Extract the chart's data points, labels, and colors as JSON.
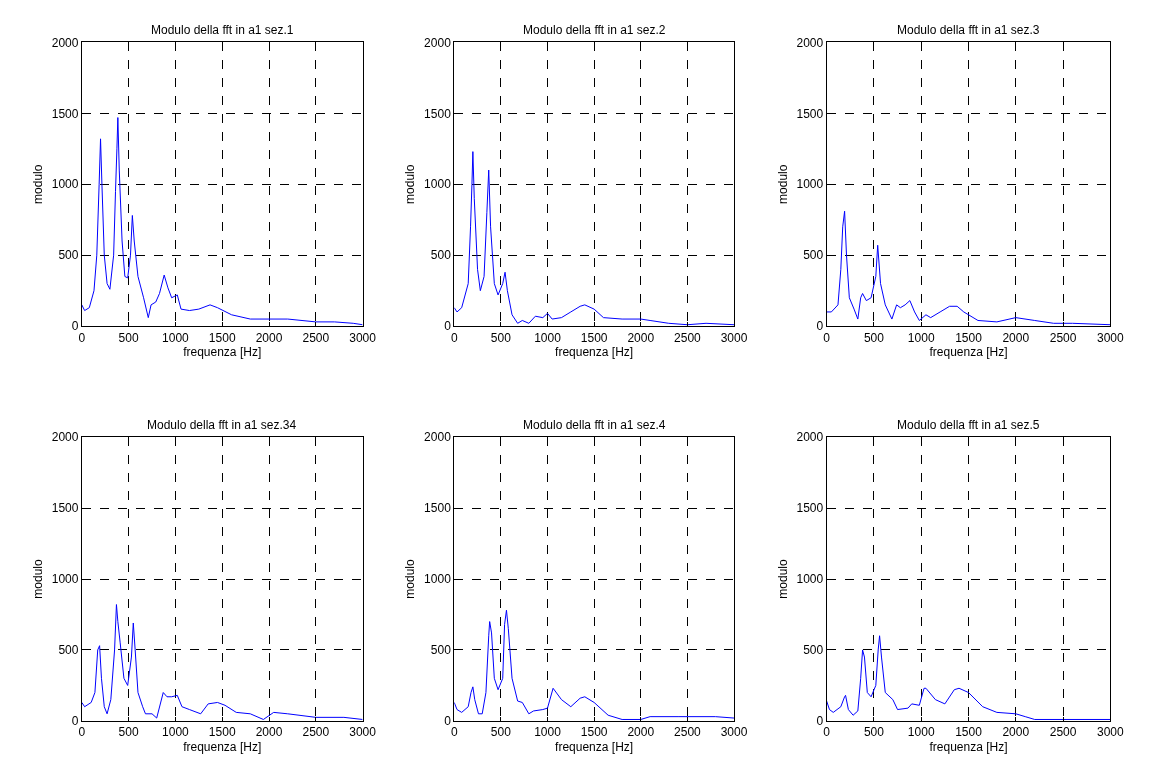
{
  "chart_data": [
    {
      "type": "line",
      "title": "Modulo della fft in a1 sez.1",
      "xlabel": "frequenza [Hz]",
      "ylabel": "modulo",
      "xlim": [
        0,
        3000
      ],
      "ylim": [
        0,
        2000
      ],
      "xticks": [
        0,
        500,
        1000,
        1500,
        2000,
        2500,
        3000
      ],
      "yticks": [
        0,
        500,
        1000,
        1500,
        2000
      ],
      "grid": true,
      "line_style": "solid",
      "series": [
        {
          "color": "#0000ff",
          "x": [
            0,
            30,
            80,
            130,
            160,
            185,
            200,
            215,
            240,
            270,
            300,
            340,
            360,
            375,
            385,
            400,
            430,
            460,
            490,
            520,
            540,
            560,
            600,
            660,
            710,
            740,
            790,
            830,
            880,
            920,
            960,
            1020,
            1060,
            1150,
            1250,
            1370,
            1450,
            1600,
            1800,
            2000,
            2200,
            2500,
            2700,
            2900,
            3000
          ],
          "values": [
            150,
            110,
            130,
            250,
            500,
            1000,
            1320,
            1000,
            500,
            300,
            260,
            500,
            950,
            1250,
            1470,
            1100,
            600,
            350,
            340,
            500,
            780,
            600,
            350,
            200,
            60,
            150,
            170,
            230,
            360,
            270,
            200,
            220,
            120,
            110,
            120,
            150,
            130,
            80,
            50,
            50,
            50,
            30,
            30,
            20,
            10
          ]
        }
      ]
    },
    {
      "type": "line",
      "title": "Modulo della fft in a1 sez.2",
      "xlabel": "frequenza [Hz]",
      "ylabel": "modulo",
      "xlim": [
        0,
        3000
      ],
      "ylim": [
        0,
        2000
      ],
      "xticks": [
        0,
        500,
        1000,
        1500,
        2000,
        2500,
        3000
      ],
      "yticks": [
        0,
        500,
        1000,
        1500,
        2000
      ],
      "grid": true,
      "line_style": "solid",
      "series": [
        {
          "color": "#0000ff",
          "x": [
            0,
            30,
            80,
            150,
            175,
            190,
            200,
            215,
            250,
            280,
            320,
            350,
            370,
            390,
            430,
            470,
            520,
            545,
            570,
            620,
            680,
            730,
            800,
            870,
            950,
            1000,
            1050,
            1150,
            1250,
            1350,
            1400,
            1500,
            1600,
            1800,
            2000,
            2100,
            2300,
            2500,
            2700,
            3000
          ],
          "values": [
            130,
            100,
            130,
            300,
            700,
            1000,
            1230,
            900,
            400,
            250,
            350,
            800,
            1100,
            700,
            300,
            220,
            300,
            380,
            250,
            80,
            20,
            40,
            20,
            70,
            60,
            90,
            50,
            60,
            100,
            140,
            150,
            120,
            60,
            50,
            50,
            40,
            20,
            10,
            20,
            10
          ]
        }
      ]
    },
    {
      "type": "line",
      "title": "Modulo della fft in a1 sez.3",
      "xlabel": "frequenza [Hz]",
      "ylabel": "modulo",
      "xlim": [
        0,
        3000
      ],
      "ylim": [
        0,
        2000
      ],
      "xticks": [
        0,
        500,
        1000,
        1500,
        2000,
        2500,
        3000
      ],
      "yticks": [
        0,
        500,
        1000,
        1500,
        2000
      ],
      "grid": true,
      "line_style": "solid",
      "series": [
        {
          "color": "#0000ff",
          "x": [
            0,
            50,
            120,
            150,
            170,
            190,
            210,
            240,
            290,
            330,
            360,
            380,
            420,
            470,
            520,
            540,
            570,
            620,
            690,
            740,
            780,
            830,
            880,
            930,
            980,
            1050,
            1100,
            1200,
            1300,
            1380,
            1450,
            1600,
            1800,
            2000,
            2200,
            2400,
            2600,
            3000
          ],
          "values": [
            100,
            100,
            150,
            400,
            700,
            810,
            500,
            200,
            120,
            50,
            200,
            230,
            180,
            200,
            350,
            570,
            300,
            150,
            50,
            150,
            130,
            150,
            180,
            100,
            40,
            80,
            60,
            100,
            140,
            140,
            100,
            40,
            30,
            60,
            40,
            20,
            20,
            10
          ]
        }
      ]
    },
    {
      "type": "line",
      "title": "Modulo della fft in a1 sez.34",
      "xlabel": "frequenza [Hz]",
      "ylabel": "modulo",
      "xlim": [
        0,
        3000
      ],
      "ylim": [
        0,
        2000
      ],
      "xticks": [
        0,
        500,
        1000,
        1500,
        2000,
        2500,
        3000
      ],
      "yticks": [
        0,
        500,
        1000,
        1500,
        2000
      ],
      "grid": true,
      "line_style": "solid",
      "series": [
        {
          "color": "#0000ff",
          "x": [
            0,
            30,
            100,
            140,
            170,
            190,
            210,
            240,
            270,
            310,
            350,
            370,
            385,
            410,
            450,
            490,
            530,
            550,
            570,
            600,
            650,
            680,
            750,
            800,
            870,
            910,
            960,
            1020,
            1070,
            1150,
            1270,
            1350,
            1450,
            1530,
            1650,
            1800,
            1940,
            2050,
            2200,
            2500,
            2800,
            3000
          ],
          "values": [
            130,
            100,
            130,
            200,
            500,
            530,
            300,
            100,
            50,
            150,
            500,
            820,
            700,
            550,
            300,
            250,
            450,
            690,
            500,
            200,
            100,
            50,
            50,
            20,
            200,
            170,
            170,
            180,
            100,
            80,
            50,
            120,
            130,
            110,
            60,
            50,
            10,
            60,
            50,
            25,
            25,
            10
          ]
        }
      ]
    },
    {
      "type": "line",
      "title": "Modulo della fft in a1 sez.4",
      "xlabel": "frequenza [Hz]",
      "ylabel": "modulo",
      "xlim": [
        0,
        3000
      ],
      "ylim": [
        0,
        2000
      ],
      "xticks": [
        0,
        500,
        1000,
        1500,
        2000,
        2500,
        3000
      ],
      "yticks": [
        0,
        500,
        1000,
        1500,
        2000
      ],
      "grid": true,
      "line_style": "solid",
      "series": [
        {
          "color": "#0000ff",
          "x": [
            0,
            30,
            80,
            150,
            180,
            200,
            220,
            260,
            300,
            340,
            370,
            380,
            400,
            430,
            470,
            520,
            540,
            560,
            580,
            620,
            680,
            730,
            800,
            850,
            950,
            1000,
            1060,
            1150,
            1250,
            1350,
            1400,
            1500,
            1650,
            1800,
            2000,
            2100,
            2400,
            2800,
            3000
          ],
          "values": [
            130,
            80,
            60,
            100,
            200,
            240,
            150,
            50,
            50,
            200,
            600,
            700,
            620,
            300,
            220,
            300,
            680,
            780,
            650,
            300,
            140,
            130,
            50,
            70,
            80,
            90,
            230,
            150,
            100,
            160,
            170,
            130,
            40,
            10,
            10,
            30,
            30,
            30,
            20
          ]
        }
      ]
    },
    {
      "type": "line",
      "title": "Modulo della fft in a1 sez.5",
      "xlabel": "frequenza [Hz]",
      "ylabel": "modulo",
      "xlim": [
        0,
        3000
      ],
      "ylim": [
        0,
        2000
      ],
      "xticks": [
        0,
        500,
        1000,
        1500,
        2000,
        2500,
        3000
      ],
      "yticks": [
        0,
        500,
        1000,
        1500,
        2000
      ],
      "grid": true,
      "line_style": "solid",
      "series": [
        {
          "color": "#0000ff",
          "x": [
            0,
            30,
            70,
            150,
            190,
            200,
            230,
            280,
            330,
            360,
            380,
            400,
            430,
            470,
            520,
            545,
            560,
            580,
            620,
            700,
            750,
            860,
            900,
            980,
            1030,
            1050,
            1150,
            1250,
            1350,
            1400,
            1500,
            1650,
            1800,
            2000,
            2100,
            2200,
            2500,
            2700,
            3000
          ],
          "values": [
            140,
            80,
            60,
            100,
            170,
            180,
            80,
            40,
            70,
            300,
            500,
            450,
            200,
            170,
            250,
            500,
            600,
            450,
            200,
            150,
            80,
            90,
            120,
            110,
            230,
            230,
            150,
            120,
            220,
            230,
            200,
            100,
            60,
            50,
            30,
            10,
            10,
            10,
            10
          ]
        }
      ]
    }
  ]
}
